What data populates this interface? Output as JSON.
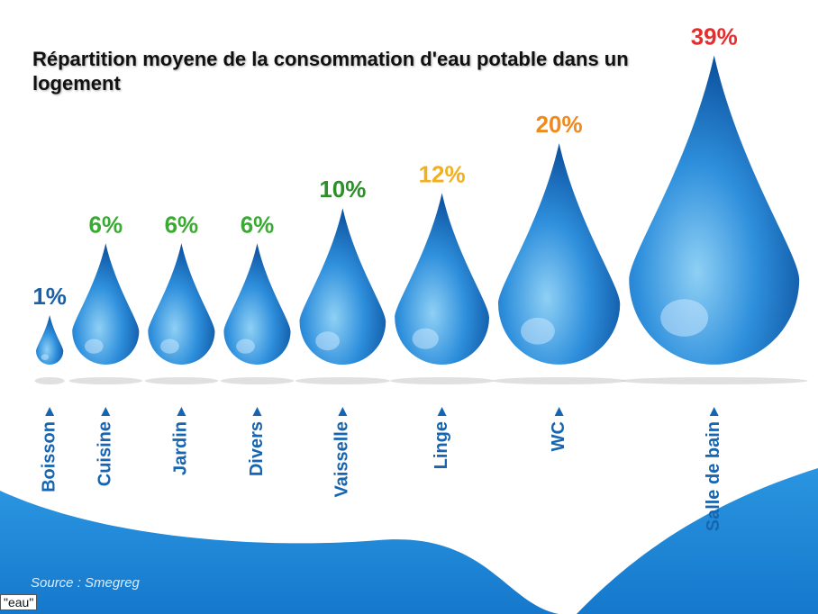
{
  "chart_data": {
    "type": "drop",
    "title": "Répartition moyene de la consommation d'eau potable dans un logement",
    "categories": [
      "Boisson",
      "Cuisine",
      "Jardin",
      "Divers",
      "Vaisselle",
      "Linge",
      "WC",
      "Salle de bain"
    ],
    "values": [
      1,
      6,
      6,
      6,
      10,
      12,
      20,
      39
    ],
    "value_labels": [
      "1%",
      "6%",
      "6%",
      "6%",
      "10%",
      "12%",
      "20%",
      "39%"
    ],
    "label_colors": [
      "#1a5fa8",
      "#3aaa35",
      "#3aaa35",
      "#3aaa35",
      "#2e8f2a",
      "#f2b01e",
      "#f08a1c",
      "#e62e2d"
    ],
    "color": "#1f7fd0",
    "source": "Source : Smegreg"
  },
  "tag": "\"eau\""
}
